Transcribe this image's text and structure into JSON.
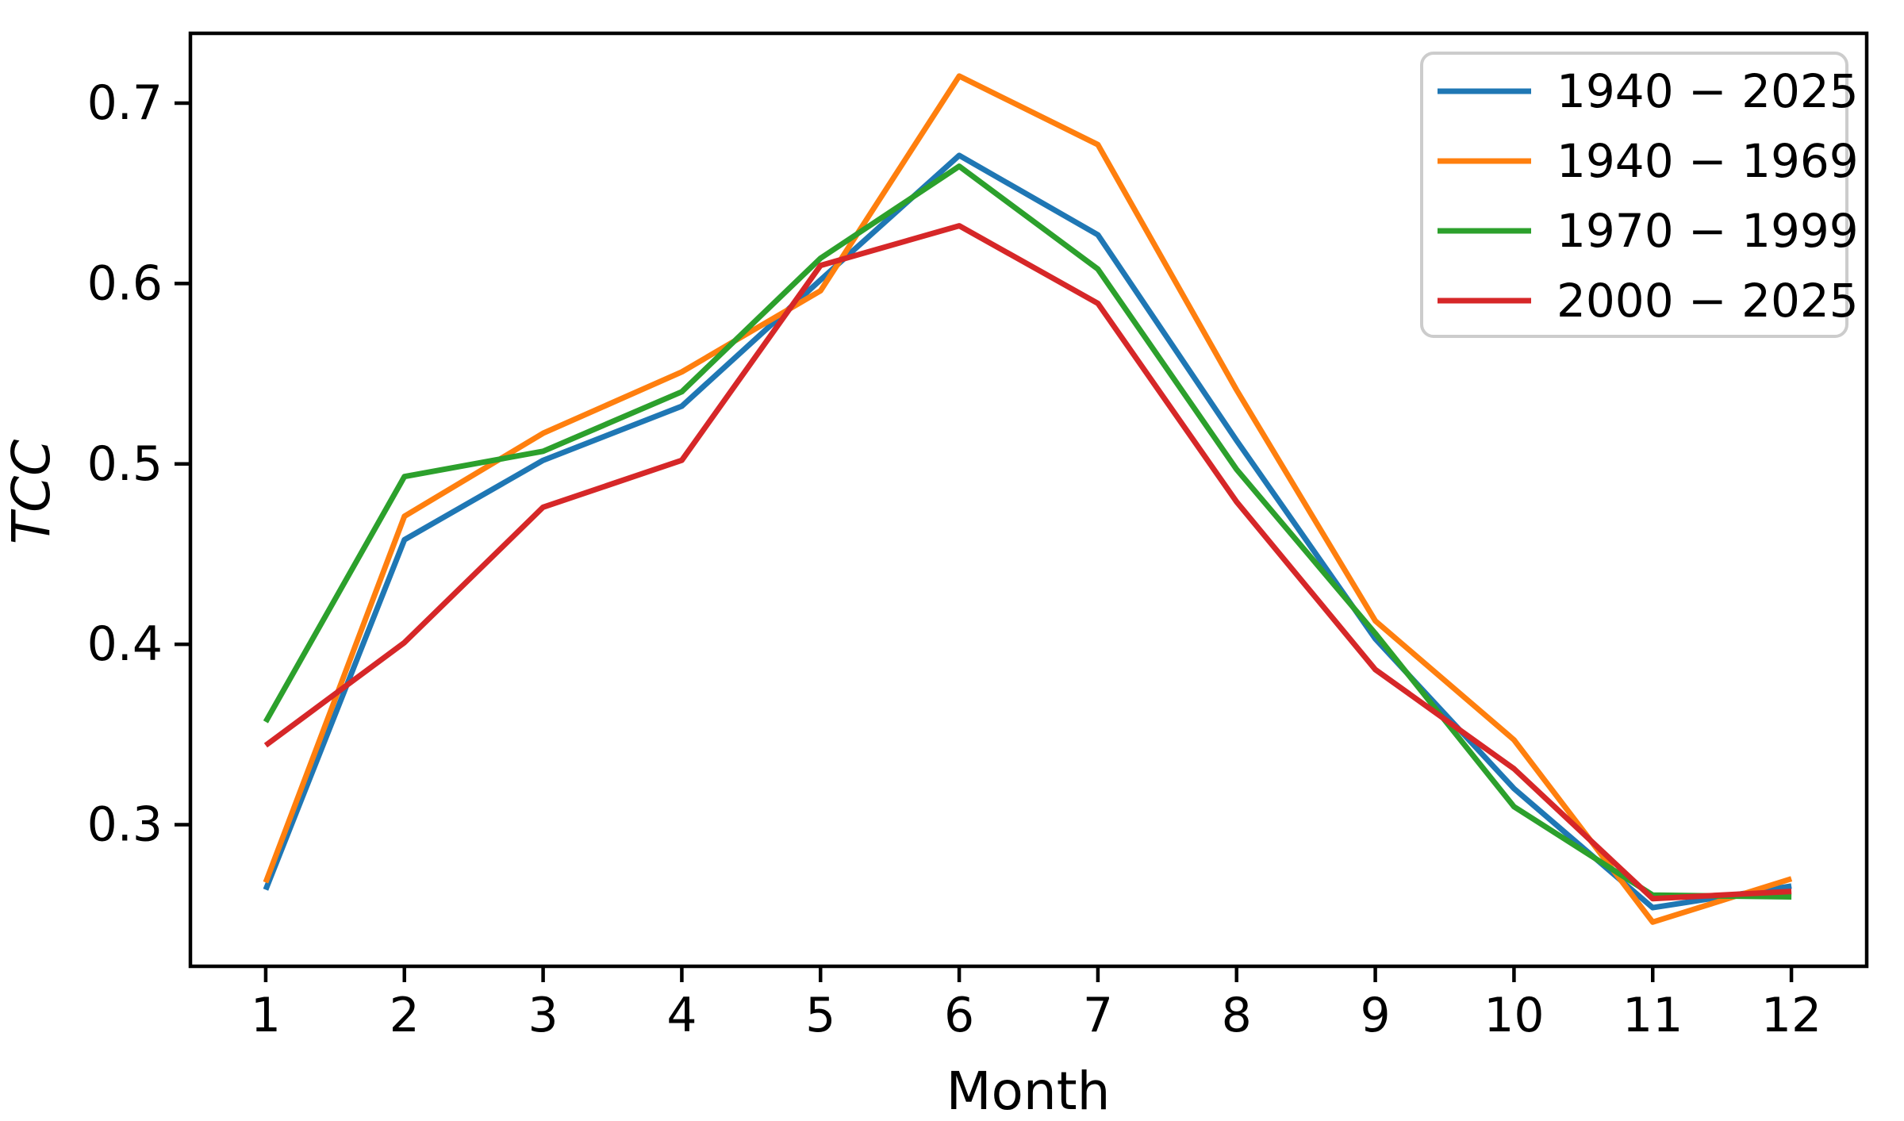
{
  "chart_data": {
    "type": "line",
    "title": "",
    "xlabel": "Month",
    "ylabel": "TCC",
    "x": [
      1,
      2,
      3,
      4,
      5,
      6,
      7,
      8,
      9,
      10,
      11,
      12
    ],
    "xticks": [
      1,
      2,
      3,
      4,
      5,
      6,
      7,
      8,
      9,
      10,
      11,
      12
    ],
    "yticks": [
      0.3,
      0.4,
      0.5,
      0.6,
      0.7
    ],
    "xlim": [
      0.457,
      12.543
    ],
    "ylim": [
      0.2215,
      0.7387
    ],
    "grid": false,
    "legend_position": "upper right",
    "axis_color": "#000000",
    "legend_border_color": "#cccccc",
    "legend_background": "#ffffff",
    "series": [
      {
        "name": "1940 − 2025",
        "color": "#1f77b4",
        "values": [
          0.264,
          0.458,
          0.502,
          0.532,
          0.602,
          0.671,
          0.627,
          0.513,
          0.403,
          0.32,
          0.254,
          0.266
        ]
      },
      {
        "name": "1940 − 1969",
        "color": "#ff7f0e",
        "values": [
          0.268,
          0.471,
          0.517,
          0.551,
          0.596,
          0.715,
          0.677,
          0.541,
          0.413,
          0.347,
          0.246,
          0.27
        ]
      },
      {
        "name": "1970 − 1999",
        "color": "#2ca02c",
        "values": [
          0.357,
          0.493,
          0.507,
          0.54,
          0.614,
          0.665,
          0.608,
          0.497,
          0.406,
          0.31,
          0.261,
          0.26
        ]
      },
      {
        "name": "2000 − 2025",
        "color": "#d62728",
        "values": [
          0.344,
          0.401,
          0.476,
          0.502,
          0.61,
          0.632,
          0.589,
          0.479,
          0.386,
          0.331,
          0.259,
          0.263
        ]
      }
    ]
  }
}
